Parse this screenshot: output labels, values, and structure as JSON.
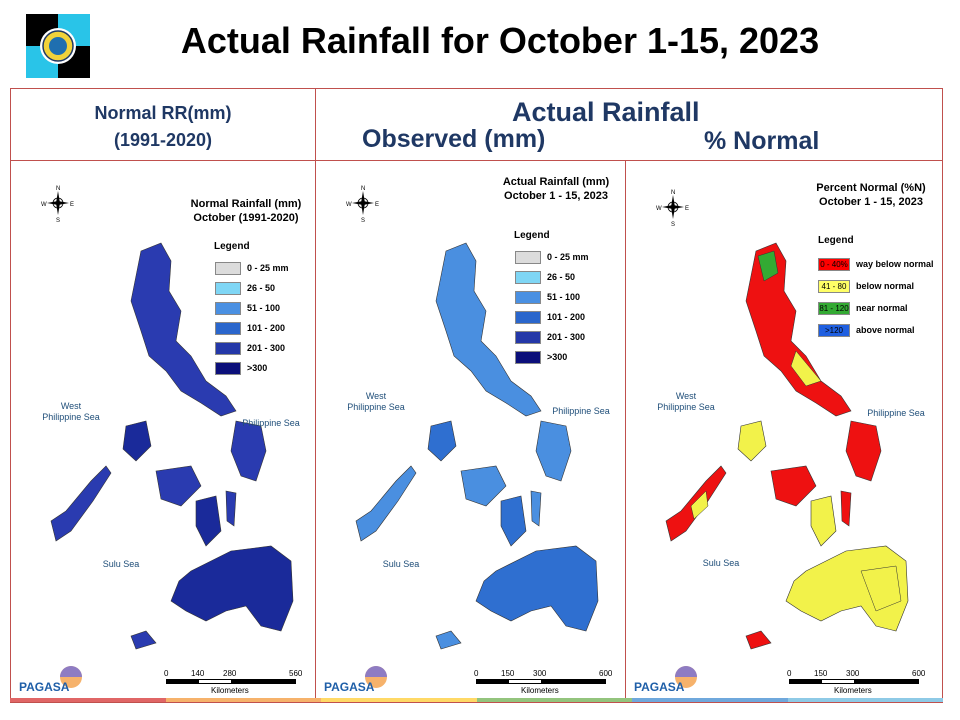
{
  "title": "Actual Rainfall for October 1-15, 2023",
  "header": {
    "normal_line1": "Normal RR(mm)",
    "normal_line2": "(1991-2020)",
    "actual": "Actual Rainfall",
    "observed": "Observed (mm)",
    "percent": "% Normal"
  },
  "panels": [
    {
      "title_line1": "Normal Rainfall (mm)",
      "title_line2": "October (1991-2020)",
      "legend_title": "Legend",
      "legend": [
        {
          "label": "0 - 25 mm",
          "color": "#dcdcdc"
        },
        {
          "label": "26 - 50",
          "color": "#7fd6f5"
        },
        {
          "label": "51 - 100",
          "color": "#4a90e2"
        },
        {
          "label": "101 - 200",
          "color": "#2a66cc"
        },
        {
          "label": "201 - 300",
          "color": "#2438a8"
        },
        {
          "label": ">300",
          "color": "#0b0f7a"
        }
      ],
      "sea_west_1": "West",
      "sea_west_2": "Philippine Sea",
      "sea_east": "Philippine Sea",
      "sea_sulu": "Sulu Sea",
      "scale": [
        "0",
        "140",
        "280",
        "560"
      ],
      "scale_unit": "Kilometers",
      "map_fill": "#2a3bb0",
      "map_fill2": "#1a2a9a"
    },
    {
      "title_line1": "Actual Rainfall (mm)",
      "title_line2": "October 1 - 15, 2023",
      "legend_title": "Legend",
      "legend": [
        {
          "label": "0 - 25 mm",
          "color": "#dcdcdc"
        },
        {
          "label": "26 - 50",
          "color": "#7fd6f5"
        },
        {
          "label": "51 - 100",
          "color": "#4a90e2"
        },
        {
          "label": "101 - 200",
          "color": "#2a66cc"
        },
        {
          "label": "201 - 300",
          "color": "#2438a8"
        },
        {
          "label": ">300",
          "color": "#0b0f7a"
        }
      ],
      "sea_west_1": "West",
      "sea_west_2": "Philippine Sea",
      "sea_east": "Philippine Sea",
      "sea_sulu": "Sulu Sea",
      "scale": [
        "0",
        "150",
        "300",
        "600"
      ],
      "scale_unit": "Kilometers",
      "map_fill": "#4a8fe0",
      "map_fill2": "#2f6fd0"
    },
    {
      "title_line1": "Percent Normal (%N)",
      "title_line2": "October 1 - 15, 2023",
      "legend_title": "Legend",
      "legend": [
        {
          "label": "way below normal",
          "swatch": "0 - 40%",
          "color": "#ff0000"
        },
        {
          "label": "below normal",
          "swatch": "41 - 80",
          "color": "#ffff66"
        },
        {
          "label": "near normal",
          "swatch": "81 - 120",
          "color": "#33aa33"
        },
        {
          "label": "above normal",
          "swatch": ">120",
          "color": "#1f5fe0"
        }
      ],
      "sea_west_1": "West",
      "sea_west_2": "Philippine Sea",
      "sea_east": "Philippine Sea",
      "sea_sulu": "Sulu Sea",
      "scale": [
        "0",
        "150",
        "300",
        "600"
      ],
      "scale_unit": "Kilometers",
      "map_fill": "#ee1111",
      "map_fill2": "#f2f24a"
    }
  ],
  "compass_n": "N",
  "compass_s": "S",
  "compass_e": "E",
  "compass_w": "W",
  "logo_label": "PAGASA",
  "stripe_colors": [
    "#e06666",
    "#f6b26b",
    "#ffd966",
    "#93c47d",
    "#6fa8dc",
    "#8ecae6"
  ]
}
